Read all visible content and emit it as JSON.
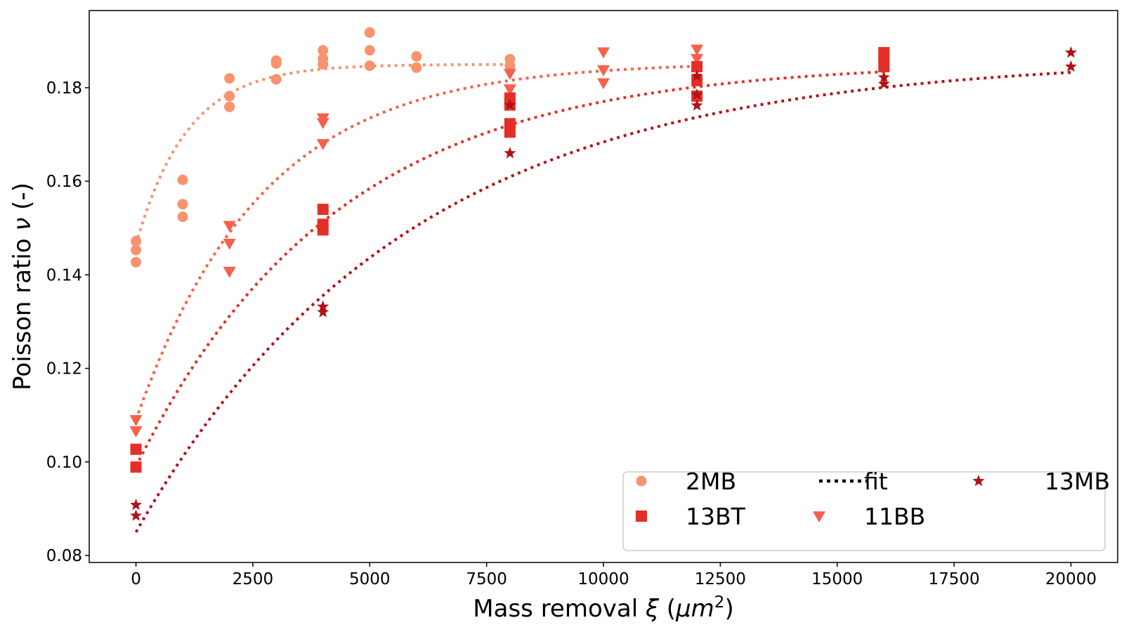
{
  "chart_data": {
    "type": "scatter",
    "xlabel": "Mass removal ξ (μm²)",
    "xlabel_parts": {
      "text": "Mass removal ",
      "symbol": "ξ",
      "unit_open": " (",
      "unit": "μm",
      "unit_exp": "2",
      "unit_close": ")"
    },
    "ylabel": "Poisson ratio ν (-)",
    "ylabel_parts": {
      "text": "Poisson ratio ",
      "symbol": "ν",
      "suffix": " (-)"
    },
    "xlim": [
      -1000,
      21000
    ],
    "ylim": [
      0.0785,
      0.1965
    ],
    "x_ticks": [
      0,
      2500,
      5000,
      7500,
      10000,
      12500,
      15000,
      17500,
      20000
    ],
    "y_ticks": [
      0.08,
      0.1,
      0.12,
      0.14,
      0.16,
      0.18
    ],
    "y_tick_labels": [
      "0.08",
      "0.10",
      "0.12",
      "0.14",
      "0.16",
      "0.18"
    ],
    "grid": false,
    "legend_position": "lower-right",
    "legend": [
      {
        "label": "2MB",
        "marker": "circle"
      },
      {
        "label": "13BT",
        "marker": "square"
      },
      {
        "label": "fit",
        "marker": "dotted-line"
      },
      {
        "label": "11BB",
        "marker": "triangle-down"
      },
      {
        "label": "13MB",
        "marker": "star"
      }
    ],
    "series": [
      {
        "name": "2MB",
        "marker": "circle",
        "color": "#f7936f",
        "points": [
          [
            0,
            0.1472
          ],
          [
            0,
            0.1453
          ],
          [
            0,
            0.1427
          ],
          [
            1000,
            0.1603
          ],
          [
            1000,
            0.1551
          ],
          [
            1000,
            0.1524
          ],
          [
            2000,
            0.182
          ],
          [
            2000,
            0.1782
          ],
          [
            2000,
            0.1759
          ],
          [
            3000,
            0.1858
          ],
          [
            3000,
            0.1852
          ],
          [
            3000,
            0.1818
          ],
          [
            4000,
            0.188
          ],
          [
            4000,
            0.1862
          ],
          [
            4000,
            0.185
          ],
          [
            5000,
            0.1918
          ],
          [
            5000,
            0.188
          ],
          [
            5000,
            0.1847
          ],
          [
            6000,
            0.1867
          ],
          [
            6000,
            0.1843
          ],
          [
            8000,
            0.1861
          ],
          [
            8000,
            0.1847
          ]
        ],
        "fit": {
          "a": 0.185,
          "b": 0.0385,
          "k": 1100
        }
      },
      {
        "name": "11BB",
        "marker": "triangle-down",
        "color": "#f6614a",
        "points": [
          [
            0,
            0.109
          ],
          [
            0,
            0.1066
          ],
          [
            2000,
            0.1505
          ],
          [
            2000,
            0.1467
          ],
          [
            2000,
            0.1407
          ],
          [
            4000,
            0.1735
          ],
          [
            4000,
            0.1725
          ],
          [
            4000,
            0.168
          ],
          [
            8000,
            0.183
          ],
          [
            8000,
            0.1797
          ],
          [
            10000,
            0.1876
          ],
          [
            10000,
            0.1838
          ],
          [
            10000,
            0.181
          ],
          [
            12000,
            0.1882
          ],
          [
            12000,
            0.1862
          ]
        ],
        "fit": {
          "a": 0.1855,
          "b": 0.0765,
          "k": 2700
        }
      },
      {
        "name": "13BT",
        "marker": "square",
        "color": "#e32f27",
        "points": [
          [
            0,
            0.1027
          ],
          [
            0,
            0.0989
          ],
          [
            4000,
            0.154
          ],
          [
            4000,
            0.1508
          ],
          [
            4000,
            0.1496
          ],
          [
            8000,
            0.1778
          ],
          [
            8000,
            0.1763
          ],
          [
            8000,
            0.1723
          ],
          [
            8000,
            0.1705
          ],
          [
            12000,
            0.1845
          ],
          [
            12000,
            0.1815
          ],
          [
            12000,
            0.1782
          ],
          [
            16000,
            0.1875
          ],
          [
            16000,
            0.186
          ],
          [
            16000,
            0.1845
          ]
        ],
        "fit": {
          "a": 0.1855,
          "b": 0.0865,
          "k": 4300
        }
      },
      {
        "name": "13MB",
        "marker": "star",
        "color": "#b11218",
        "points": [
          [
            0,
            0.0908
          ],
          [
            0,
            0.0885
          ],
          [
            4000,
            0.1332
          ],
          [
            4000,
            0.132
          ],
          [
            8000,
            0.1763
          ],
          [
            8000,
            0.166
          ],
          [
            12000,
            0.1825
          ],
          [
            12000,
            0.1785
          ],
          [
            12000,
            0.1762
          ],
          [
            16000,
            0.1822
          ],
          [
            16000,
            0.1808
          ],
          [
            20000,
            0.1875
          ],
          [
            20000,
            0.1845
          ]
        ],
        "fit": {
          "a": 0.1865,
          "b": 0.1015,
          "k": 5800
        }
      }
    ]
  }
}
